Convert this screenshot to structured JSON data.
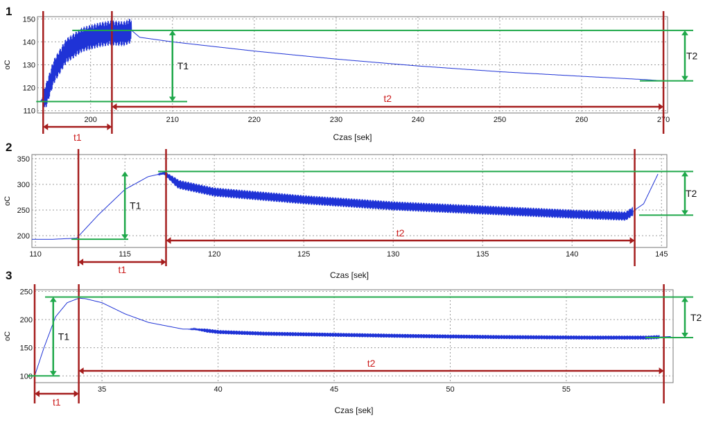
{
  "colors": {
    "signal": "#1f33d6",
    "marker": "#a51d1d",
    "level": "#1fa84a",
    "grid": "#9a9a9a",
    "frame": "#777777",
    "text": "#111111",
    "annotation_red": "#cc1c1c"
  },
  "chart_data": [
    {
      "type": "line",
      "panel_label": "1",
      "xlabel": "Czas [sek]",
      "ylabel": "oC",
      "xlim": [
        193.5,
        270.5
      ],
      "ylim": [
        109,
        151
      ],
      "xticks": [
        200,
        210,
        220,
        230,
        240,
        250,
        260,
        270
      ],
      "yticks": [
        110,
        120,
        130,
        140,
        150
      ],
      "grid": true,
      "series": [
        {
          "approx_envelope": {
            "x": [
              193.8,
              194.5,
              195.5,
              197.0,
              199.0,
              201.0,
              202.5,
              204.0,
              205.0,
              206.0,
              210.0,
              220.0,
              230.0,
              240.0,
              250.0,
              260.0,
              268.0,
              270.0
            ],
            "y": [
              114.0,
              116.0,
              127.0,
              136.0,
              141.0,
              143.0,
              144.0,
              143.5,
              145.0,
              142.0,
              140.0,
              136.0,
              132.5,
              129.5,
              127.0,
              125.0,
              123.5,
              123.0
            ]
          },
          "oscillation": {
            "x_from": 194.0,
            "x_to": 205.0,
            "amplitude": 5.5
          }
        }
      ],
      "markers": {
        "x": [
          194.2,
          202.6,
          270.0
        ]
      },
      "levels": {
        "T1": [
          114.0,
          145.0
        ],
        "T2": [
          123.0,
          145.0
        ]
      },
      "annotations": {
        "T1": {
          "text": "T1",
          "x": 210.0
        },
        "T2": {
          "text": "T2"
        },
        "t1": {
          "text": "t1",
          "x_from": 194.2,
          "x_to": 202.6
        },
        "t2": {
          "text": "t2",
          "x_from": 202.6,
          "x_to": 270.0
        }
      }
    },
    {
      "type": "line",
      "panel_label": "2",
      "xlabel": "Czas [sek]",
      "ylabel": "oC",
      "xlim": [
        109.8,
        145.3
      ],
      "ylim": [
        177,
        358
      ],
      "xticks": [
        110,
        115,
        120,
        125,
        130,
        135,
        140,
        145
      ],
      "yticks": [
        200,
        250,
        300,
        350
      ],
      "grid": true,
      "series": [
        {
          "approx_envelope": {
            "x": [
              109.8,
              111.0,
              112.3,
              113.5,
              115.0,
              116.3,
              117.2,
              118.0,
              120.0,
              125.0,
              130.0,
              135.0,
              140.0,
              143.0,
              144.0,
              144.8
            ],
            "y": [
              193.0,
              193.0,
              195.0,
              240.0,
              290.0,
              315.0,
              322.0,
              300.0,
              285.0,
              270.0,
              258.0,
              250.0,
              242.0,
              238.0,
              262.0,
              320.0
            ]
          },
          "oscillation": {
            "x_from": 116.8,
            "x_to": 143.4,
            "amplitude": 9.0
          }
        }
      ],
      "markers": {
        "x": [
          112.4,
          117.3,
          143.5
        ]
      },
      "levels": {
        "T1": [
          193.0,
          325.0
        ],
        "T2": [
          240.0,
          325.0
        ]
      },
      "annotations": {
        "T1": {
          "text": "T1",
          "x": 115.0
        },
        "T2": {
          "text": "T2"
        },
        "t1": {
          "text": "t1",
          "x_from": 112.4,
          "x_to": 117.3
        },
        "t2": {
          "text": "t2",
          "x_from": 117.3,
          "x_to": 143.5
        }
      }
    },
    {
      "type": "line",
      "panel_label": "3",
      "xlabel": "Czas [sek]",
      "ylabel": "oC",
      "xlim": [
        32.1,
        59.6
      ],
      "ylim": [
        88,
        253
      ],
      "xticks": [
        35,
        40,
        45,
        50,
        55
      ],
      "yticks": [
        100,
        150,
        200,
        250
      ],
      "grid": true,
      "series": [
        {
          "approx_envelope": {
            "x": [
              32.1,
              32.5,
              33.0,
              33.5,
              34.0,
              34.3,
              35.0,
              36.0,
              37.0,
              38.5,
              39.0,
              40.0,
              42.0,
              45.0,
              48.0,
              52.0,
              56.0,
              58.5,
              59.5
            ],
            "y": [
              100.0,
              150.0,
              205.0,
              230.0,
              238.0,
              237.0,
              230.0,
              210.0,
              195.0,
              183.0,
              183.0,
              178.0,
              175.0,
              173.0,
              171.0,
              169.0,
              168.0,
              168.0,
              170.0
            ]
          },
          "oscillation": {
            "x_from": 38.7,
            "x_to": 59.0,
            "amplitude": 3.5
          }
        }
      ],
      "markers": {
        "x": [
          32.1,
          34.0,
          59.2
        ]
      },
      "levels": {
        "T1": [
          100.0,
          240.0
        ],
        "T2": [
          168.0,
          240.0
        ]
      },
      "annotations": {
        "T1": {
          "text": "T1",
          "x": 32.9
        },
        "T2": {
          "text": "T2"
        },
        "t1": {
          "text": "t1",
          "x_from": 32.1,
          "x_to": 34.0
        },
        "t2": {
          "text": "t2",
          "x_from": 34.0,
          "x_to": 59.2
        }
      }
    }
  ]
}
